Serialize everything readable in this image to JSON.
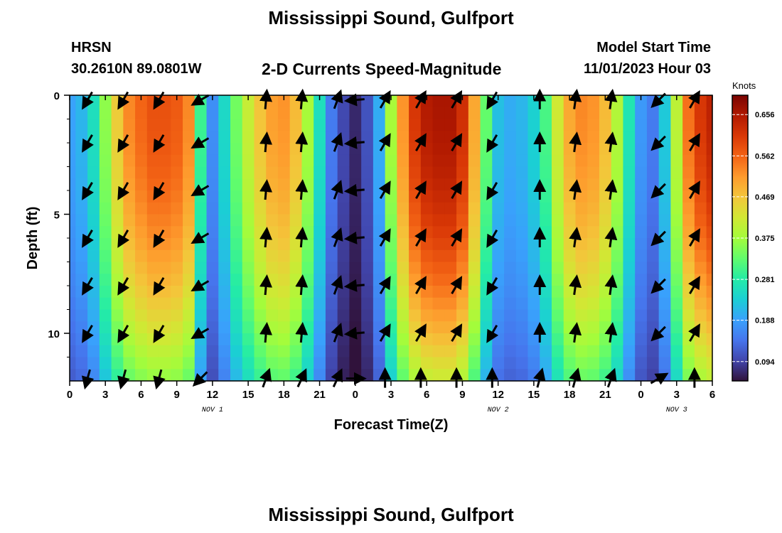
{
  "header": {
    "title": "Mississippi Sound, Gulfport",
    "station": "HRSN",
    "coordinates": "30.2610N  89.0801W",
    "product": "2-D Currents Speed-Magnitude",
    "model_start_label": "Model Start Time",
    "model_start_value": "11/01/2023 Hour 03"
  },
  "footer": {
    "title_repeat": "Mississippi Sound, Gulfport"
  },
  "chart_data": {
    "type": "heatmap",
    "title": "2-D Currents Speed-Magnitude",
    "xlabel": "Forecast Time(Z)",
    "ylabel": "Depth (ft)",
    "x_range_hours": [
      0,
      54
    ],
    "x_tick_labels": [
      "0",
      "3",
      "6",
      "9",
      "12",
      "15",
      "18",
      "21",
      "0",
      "3",
      "6",
      "9",
      "12",
      "15",
      "18",
      "21",
      "0",
      "3",
      "6"
    ],
    "date_labels": [
      {
        "label": "NOV 1",
        "hour": 12
      },
      {
        "label": "NOV 2",
        "hour": 36
      },
      {
        "label": "NOV 3",
        "hour": 51
      }
    ],
    "y_range_ft": [
      0,
      12
    ],
    "y_reversed": true,
    "y_ticks": [
      0,
      5,
      10
    ],
    "colorbar": {
      "unit": "Knots",
      "ticks": [
        0.656,
        0.562,
        0.469,
        0.375,
        0.281,
        0.188,
        0.094
      ],
      "vmin": 0.05,
      "vmax": 0.7
    },
    "colormap": [
      "#30123b",
      "#4145ab",
      "#4675ed",
      "#39a2fc",
      "#1bcfd4",
      "#24eca6",
      "#61fc6c",
      "#a4fc3b",
      "#d1e834",
      "#f3c63a",
      "#fe9b2d",
      "#f36315",
      "#d93806",
      "#b11901",
      "#7a0402"
    ],
    "speed_profile": {
      "hours": [
        0,
        1,
        2,
        3,
        4,
        5,
        6,
        7,
        8,
        9,
        10,
        11,
        12,
        13,
        14,
        15,
        16,
        17,
        18,
        19,
        20,
        21,
        22,
        23,
        24,
        25,
        26,
        27,
        28,
        29,
        30,
        31,
        32,
        33,
        34,
        35,
        36,
        37,
        38,
        39,
        40,
        41,
        42,
        43,
        44,
        45,
        46,
        47,
        48,
        49,
        50,
        51,
        52,
        53,
        54
      ],
      "speed_knots_surface": [
        0.19,
        0.21,
        0.26,
        0.36,
        0.46,
        0.53,
        0.56,
        0.58,
        0.58,
        0.57,
        0.53,
        0.3,
        0.17,
        0.25,
        0.34,
        0.41,
        0.47,
        0.51,
        0.52,
        0.48,
        0.38,
        0.26,
        0.15,
        0.1,
        0.07,
        0.11,
        0.2,
        0.38,
        0.52,
        0.61,
        0.65,
        0.66,
        0.66,
        0.62,
        0.5,
        0.33,
        0.22,
        0.2,
        0.21,
        0.24,
        0.31,
        0.42,
        0.5,
        0.53,
        0.52,
        0.48,
        0.39,
        0.27,
        0.18,
        0.15,
        0.23,
        0.4,
        0.55,
        0.61,
        0.64
      ],
      "depth_fraction_at_12ft": 0.62
    },
    "vector_columns_hours": [
      1.5,
      4.5,
      7.5,
      11,
      16.5,
      19.5,
      22.5,
      24,
      26.5,
      29.5,
      32.5,
      35.5,
      39.5,
      42.5,
      45.5,
      49.5,
      52.5
    ],
    "vector_rows_ft": [
      0.2,
      2.0,
      4.0,
      6.0,
      8.0,
      10.0,
      11.9
    ],
    "vector_directions_deg": [
      210,
      210,
      210,
      240,
      5,
      5,
      20,
      265,
      30,
      30,
      30,
      210,
      0,
      8,
      8,
      225,
      30
    ],
    "vector_direction_at_bottom": [
      195,
      195,
      195,
      225,
      20,
      25,
      25,
      90,
      0,
      0,
      0,
      0,
      15,
      15,
      20,
      60,
      0
    ]
  }
}
